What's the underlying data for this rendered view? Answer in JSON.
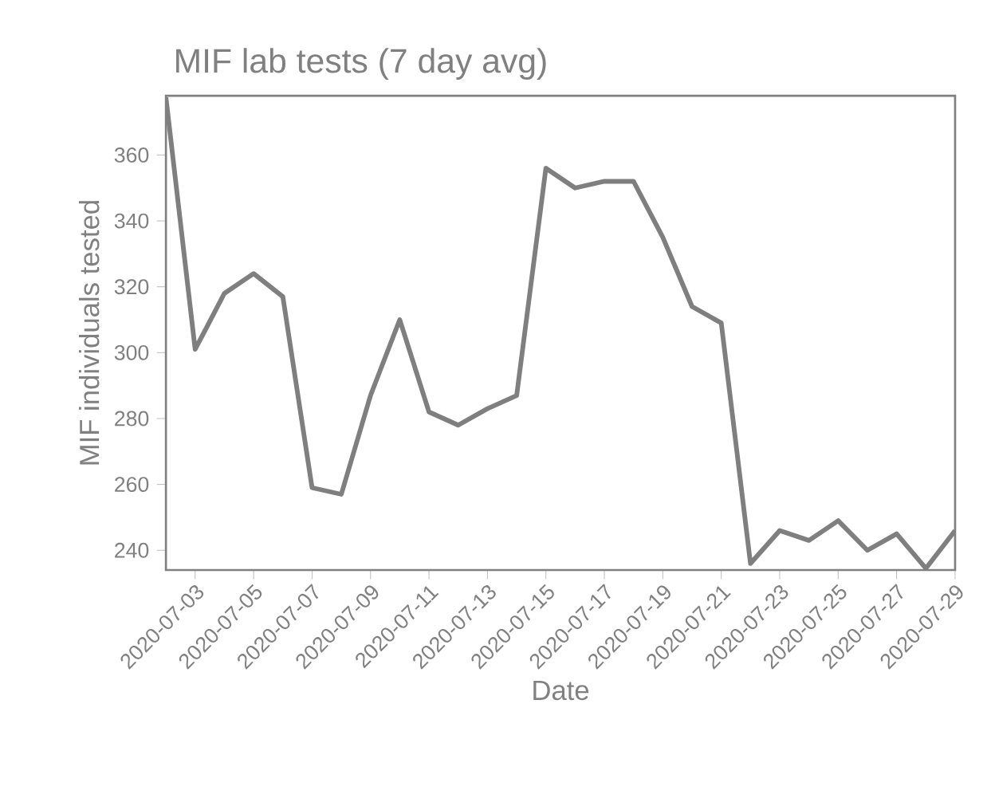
{
  "chart_data": {
    "type": "line",
    "title": "MIF lab tests (7 day avg)",
    "xlabel": "Date",
    "ylabel": "MIF individuals tested",
    "color": "#7f7f7f",
    "x": [
      "2020-07-02",
      "2020-07-03",
      "2020-07-04",
      "2020-07-05",
      "2020-07-06",
      "2020-07-07",
      "2020-07-08",
      "2020-07-09",
      "2020-07-10",
      "2020-07-11",
      "2020-07-12",
      "2020-07-13",
      "2020-07-14",
      "2020-07-15",
      "2020-07-16",
      "2020-07-17",
      "2020-07-18",
      "2020-07-19",
      "2020-07-20",
      "2020-07-21",
      "2020-07-22",
      "2020-07-23",
      "2020-07-24",
      "2020-07-25",
      "2020-07-26",
      "2020-07-27",
      "2020-07-28",
      "2020-07-29"
    ],
    "values": [
      377.5,
      301,
      318,
      324,
      317,
      259,
      257,
      287,
      310,
      282,
      278,
      283,
      287,
      356,
      350,
      352,
      352,
      335,
      314,
      309,
      236,
      246,
      243,
      249,
      240,
      245,
      234.5,
      246
    ],
    "xlim": [
      "2020-07-02",
      "2020-07-29"
    ],
    "xticks": [
      "2020-07-03",
      "2020-07-05",
      "2020-07-07",
      "2020-07-09",
      "2020-07-11",
      "2020-07-13",
      "2020-07-15",
      "2020-07-17",
      "2020-07-19",
      "2020-07-21",
      "2020-07-23",
      "2020-07-25",
      "2020-07-27",
      "2020-07-29"
    ],
    "ylim": [
      234,
      378
    ],
    "yticks": [
      240,
      260,
      280,
      300,
      320,
      340,
      360
    ],
    "marker": "none",
    "line_style": "solid"
  }
}
